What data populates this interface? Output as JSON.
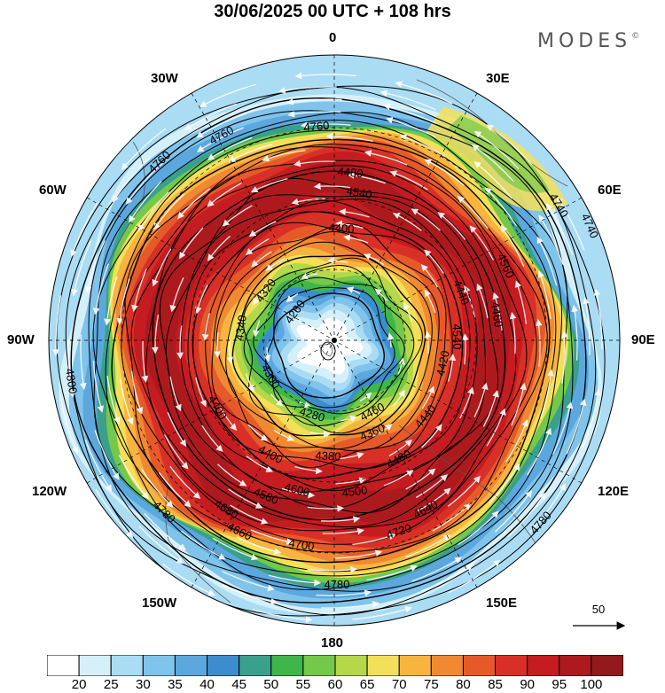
{
  "title": "30/06/2025  00 UTC  + 108 hrs",
  "brand": {
    "name": "MODES",
    "mark": "©"
  },
  "longitude_labels": {
    "top": "0",
    "bottom": "180",
    "left": "90W",
    "right": "90E",
    "upper_left_30": "30W",
    "upper_right_30": "30E",
    "upper_left_60": "60W",
    "upper_right_60": "60E",
    "lower_left_120": "120W",
    "lower_right_120": "120E",
    "lower_left_150": "150W",
    "lower_right_150": "150E"
  },
  "reference_vector": {
    "label": "50"
  },
  "colorbar": {
    "labels": [
      "20",
      "25",
      "30",
      "35",
      "40",
      "45",
      "50",
      "55",
      "60",
      "65",
      "70",
      "75",
      "80",
      "85",
      "90",
      "95",
      "100"
    ],
    "colors": [
      "#ffffff",
      "#d6f0fa",
      "#aadcf4",
      "#80c4ec",
      "#5ca8de",
      "#3d8dcc",
      "#3aa08c",
      "#3fb64a",
      "#74c84a",
      "#b4d84a",
      "#f3e05a",
      "#f7b540",
      "#f08a32",
      "#e65a2a",
      "#d83026",
      "#c41c20",
      "#ac1a1e",
      "#921a1c"
    ]
  },
  "contour_labels": [
    "4760",
    "4760",
    "4760",
    "4800",
    "4800",
    "4740",
    "4740",
    "4780",
    "4780",
    "4780",
    "4720",
    "4700",
    "4680",
    "4660",
    "4640",
    "4600",
    "4580",
    "4560",
    "4540",
    "4500",
    "4480",
    "4460",
    "4440",
    "4420",
    "4400",
    "4400",
    "4380",
    "4360",
    "4340",
    "4320",
    "4300",
    "4280",
    "4260",
    "4540",
    "4480",
    "4460",
    "4440",
    "4400"
  ]
}
